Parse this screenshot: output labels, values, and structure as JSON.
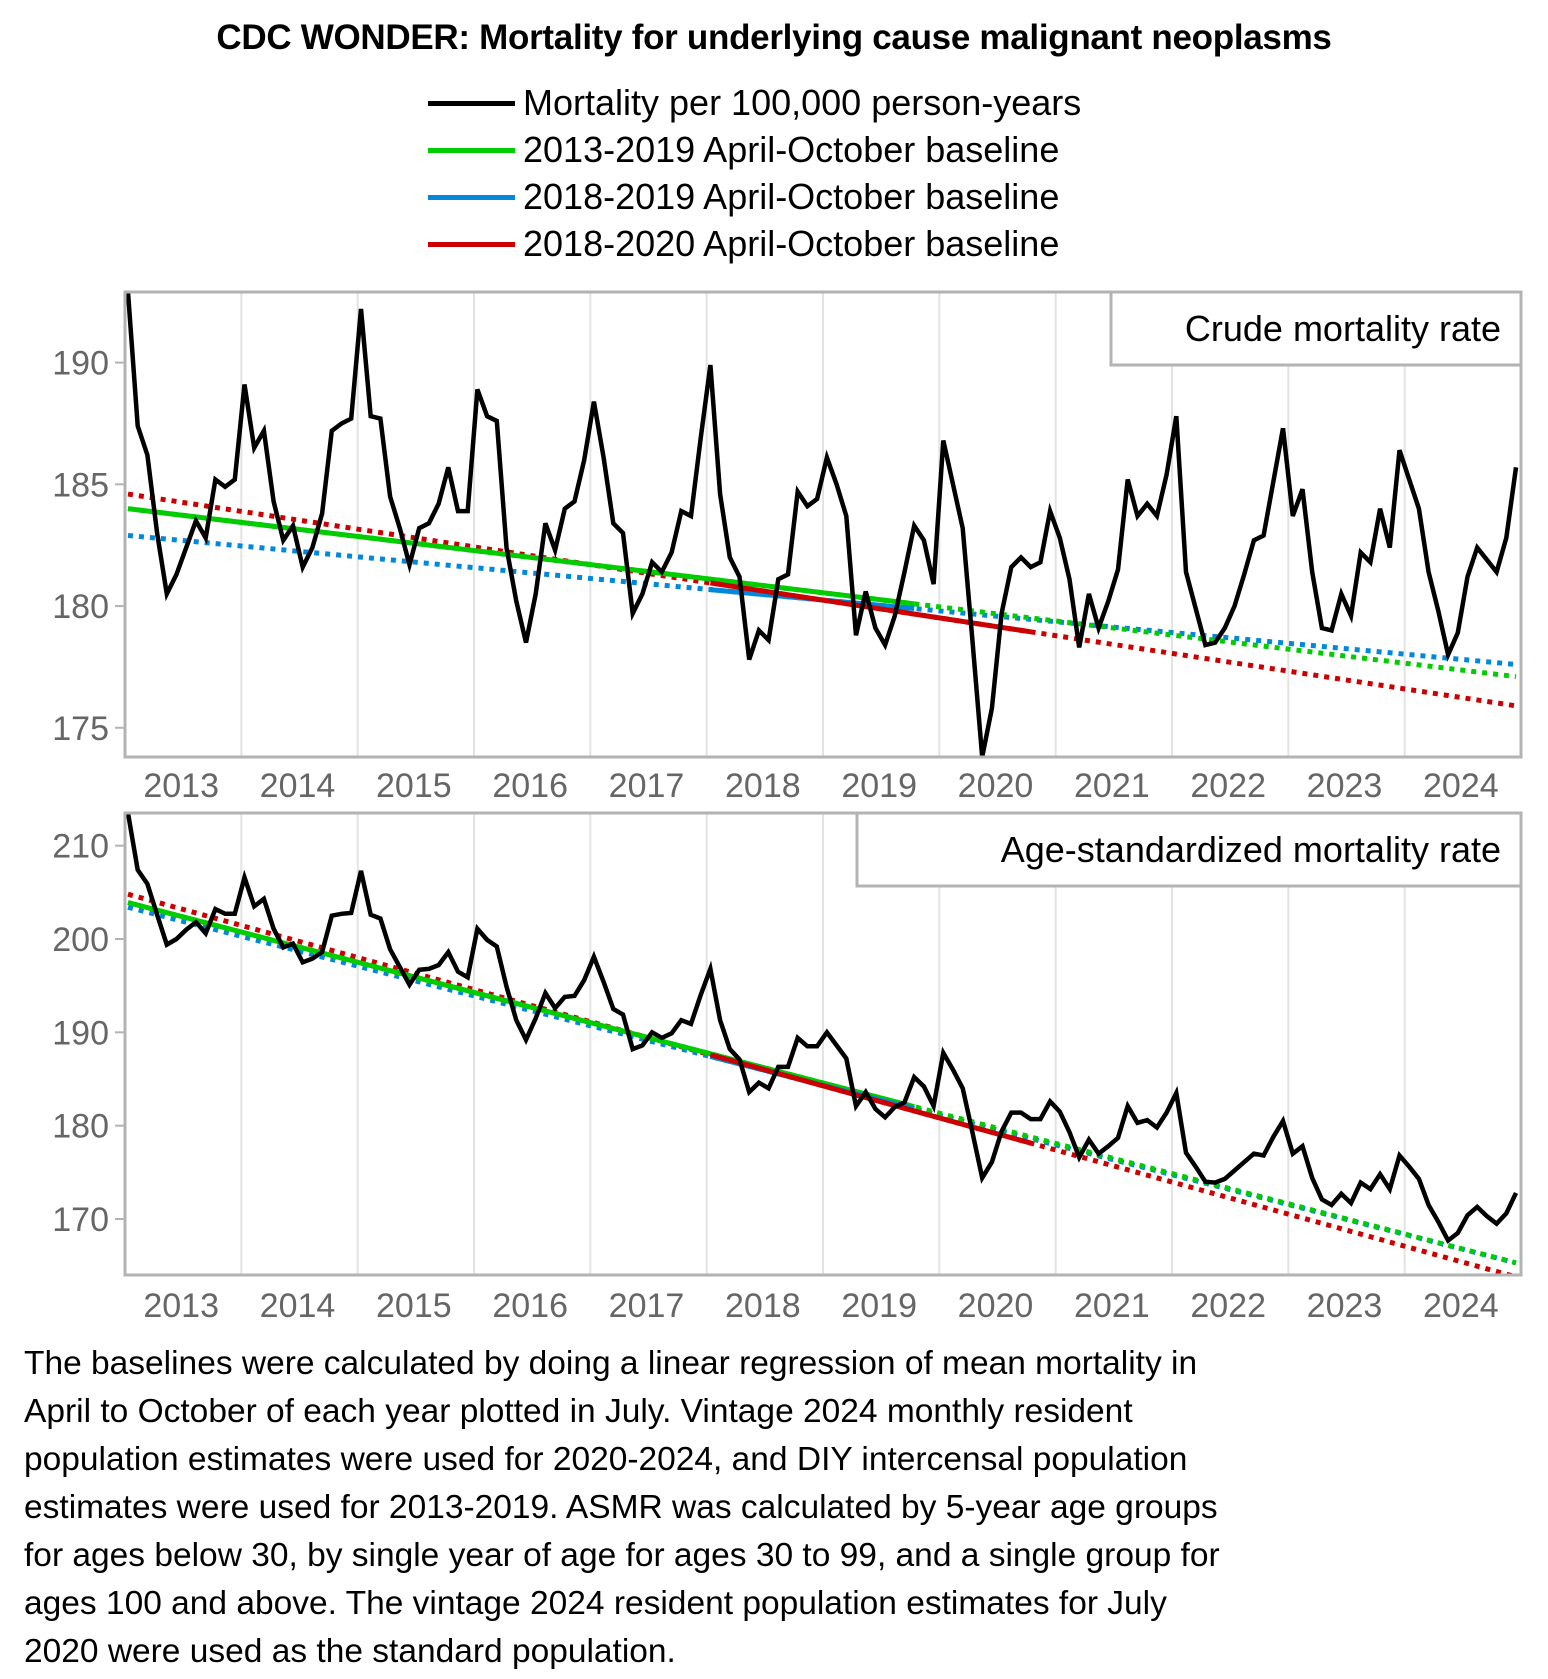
{
  "title": "CDC WONDER: Mortality for underlying cause malignant neoplasms",
  "legend": [
    {
      "label": "Mortality per 100,000 person-years",
      "color": "#000000"
    },
    {
      "label": "2013-2019 April-October baseline",
      "color": "#00cc00"
    },
    {
      "label": "2018-2019 April-October baseline",
      "color": "#0088dd"
    },
    {
      "label": "2018-2020 April-October baseline",
      "color": "#cc0000"
    }
  ],
  "footer": "The baselines were calculated by doing a linear regression of mean mortality in\nApril to October of each year plotted in July. Vintage 2024 monthly resident\npopulation estimates were used for 2020-2024, and DIY intercensal population\nestimates were used for 2013-2019. ASMR was calculated by 5-year age groups\nfor ages below 30, by single year of age for ages 30 to 99, and a single group for\nages 100 and above. The vintage 2024 resident population estimates for July\n2020 were used as the standard population.",
  "chart_data": [
    {
      "type": "line",
      "title": "Crude mortality rate",
      "xlabel": "",
      "ylabel": "",
      "x_start": "2013-01",
      "x_step": "month",
      "x_tick_labels": [
        "2013",
        "2014",
        "2015",
        "2016",
        "2017",
        "2018",
        "2019",
        "2020",
        "2021",
        "2022",
        "2023",
        "2024"
      ],
      "yticks": [
        175,
        180,
        185,
        190
      ],
      "ylim": [
        173.8,
        192.9
      ],
      "grid": "vertical at year boundaries",
      "legend_placement": "top-center",
      "series": [
        {
          "name": "Mortality per 100,000 person-years",
          "color": "#000000",
          "values": [
            192.9,
            187.4,
            186.2,
            183.0,
            180.5,
            181.3,
            182.4,
            183.5,
            182.8,
            185.2,
            184.9,
            185.2,
            189.1,
            186.5,
            187.2,
            184.3,
            182.7,
            183.3,
            181.6,
            182.4,
            183.8,
            187.2,
            187.5,
            187.7,
            192.2,
            187.8,
            187.7,
            184.5,
            183.2,
            181.7,
            183.2,
            183.4,
            184.2,
            185.7,
            183.9,
            183.9,
            188.9,
            187.8,
            187.6,
            182.4,
            180.2,
            178.5,
            180.5,
            183.4,
            182.3,
            184.0,
            184.3,
            186.0,
            188.4,
            186.1,
            183.4,
            183.0,
            179.7,
            180.5,
            181.8,
            181.4,
            182.2,
            183.9,
            183.7,
            186.9,
            189.9,
            184.6,
            182.0,
            181.2,
            177.8,
            179.0,
            178.6,
            181.1,
            181.3,
            184.7,
            184.1,
            184.4,
            186.1,
            185.0,
            183.7,
            178.8,
            180.6,
            179.1,
            178.4,
            179.6,
            181.4,
            183.3,
            182.7,
            180.9,
            186.8,
            185.0,
            183.2,
            178.6,
            173.8,
            175.8,
            179.7,
            181.6,
            182.0,
            181.6,
            181.8,
            183.9,
            182.8,
            181.1,
            178.3,
            180.5,
            179.1,
            180.2,
            181.5,
            185.2,
            183.7,
            184.2,
            183.7,
            185.4,
            187.8,
            181.4,
            179.9,
            178.4,
            178.5,
            179.1,
            180.0,
            181.3,
            182.7,
            182.9,
            185.1,
            187.3,
            183.7,
            184.8,
            181.4,
            179.1,
            179.0,
            180.5,
            179.6,
            182.2,
            181.8,
            184.0,
            182.4,
            186.4,
            185.2,
            184.0,
            181.4,
            179.8,
            178.0,
            178.9,
            181.2,
            182.4,
            181.9,
            181.4,
            182.8,
            185.7
          ]
        },
        {
          "name": "2013-2019 April-October baseline",
          "color": "#00cc00",
          "start_value": 184.0,
          "end_value": 177.1,
          "solid_from": "2013-01",
          "solid_to": "2019-10"
        },
        {
          "name": "2018-2019 April-October baseline",
          "color": "#0088dd",
          "start_value": 182.9,
          "end_value": 177.6,
          "solid_from": "2018-01",
          "solid_to": "2019-10"
        },
        {
          "name": "2018-2020 April-October baseline",
          "color": "#cc0000",
          "start_value": 184.6,
          "end_value": 175.9,
          "solid_from": "2018-01",
          "solid_to": "2020-10"
        }
      ]
    },
    {
      "type": "line",
      "title": "Age-standardized mortality rate",
      "xlabel": "",
      "ylabel": "",
      "x_start": "2013-01",
      "x_step": "month",
      "x_tick_labels": [
        "2013",
        "2014",
        "2015",
        "2016",
        "2017",
        "2018",
        "2019",
        "2020",
        "2021",
        "2022",
        "2023",
        "2024"
      ],
      "yticks": [
        170,
        180,
        190,
        200,
        210
      ],
      "ylim": [
        164.0,
        213.5
      ],
      "grid": "vertical at year boundaries",
      "series": [
        {
          "name": "Mortality per 100,000 person-years",
          "color": "#000000",
          "values": [
            213.5,
            207.4,
            205.9,
            202.6,
            199.4,
            200.0,
            201.0,
            201.8,
            200.6,
            203.2,
            202.7,
            202.7,
            206.6,
            203.5,
            204.3,
            201.1,
            199.1,
            199.5,
            197.5,
            197.9,
            198.6,
            202.5,
            202.7,
            202.8,
            207.3,
            202.6,
            202.2,
            198.9,
            197.0,
            195.1,
            196.7,
            196.8,
            197.2,
            198.6,
            196.5,
            195.9,
            201.1,
            199.9,
            199.2,
            194.9,
            191.3,
            189.2,
            191.5,
            194.2,
            192.6,
            193.8,
            193.9,
            195.6,
            198.1,
            195.4,
            192.5,
            191.9,
            188.2,
            188.6,
            190.0,
            189.4,
            189.9,
            191.3,
            190.9,
            194.0,
            196.8,
            191.3,
            188.2,
            187.1,
            183.6,
            184.6,
            184.0,
            186.3,
            186.3,
            189.4,
            188.5,
            188.5,
            190.0,
            188.6,
            187.2,
            182.1,
            183.6,
            181.8,
            180.9,
            182.0,
            182.5,
            185.2,
            184.2,
            182.1,
            187.8,
            186.0,
            184.0,
            179.3,
            174.4,
            176.1,
            179.4,
            181.4,
            181.4,
            180.7,
            180.7,
            182.6,
            181.5,
            179.3,
            176.6,
            178.5,
            177.0,
            177.8,
            178.7,
            182.1,
            180.3,
            180.6,
            179.8,
            181.4,
            183.5,
            177.1,
            175.6,
            174.0,
            173.9,
            174.3,
            175.2,
            176.1,
            177.0,
            176.8,
            178.8,
            180.5,
            177.0,
            177.8,
            174.4,
            172.1,
            171.5,
            172.7,
            171.7,
            173.9,
            173.2,
            174.8,
            173.2,
            176.8,
            175.6,
            174.3,
            171.5,
            169.7,
            167.7,
            168.5,
            170.4,
            171.3,
            170.3,
            169.5,
            170.6,
            172.8
          ]
        },
        {
          "name": "2013-2019 April-October baseline",
          "color": "#00cc00",
          "start_value": 203.9,
          "end_value": 165.3,
          "solid_from": "2013-01",
          "solid_to": "2019-10"
        },
        {
          "name": "2018-2019 April-October baseline",
          "color": "#0088dd",
          "start_value": 203.4,
          "end_value": 165.3,
          "solid_from": "2018-01",
          "solid_to": "2019-10"
        },
        {
          "name": "2018-2020 April-October baseline",
          "color": "#cc0000",
          "start_value": 204.8,
          "end_value": 163.8,
          "solid_from": "2018-01",
          "solid_to": "2020-10"
        }
      ]
    }
  ]
}
